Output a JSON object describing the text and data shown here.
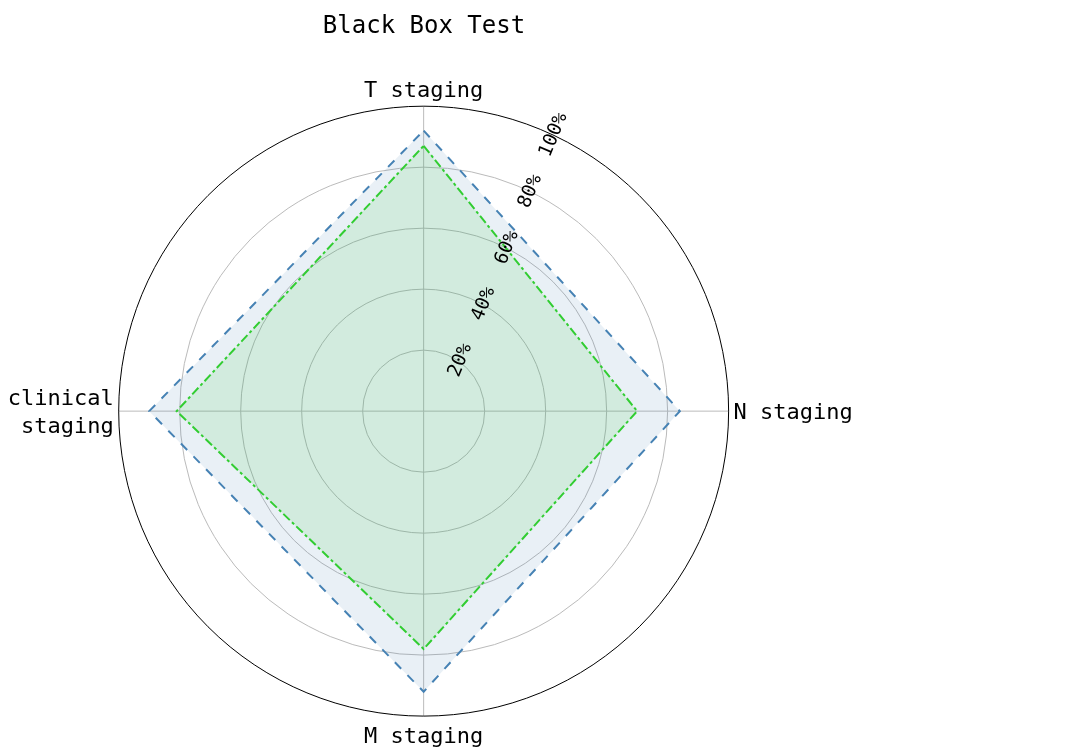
{
  "chart_data": {
    "type": "radar",
    "title": "Black Box Test",
    "categories": [
      "T staging",
      "N staging",
      "M staging",
      "clinical\nstaging"
    ],
    "ylim": [
      0,
      100
    ],
    "yticks": [
      {
        "value": 20,
        "label": "20%"
      },
      {
        "value": 40,
        "label": "40%"
      },
      {
        "value": 60,
        "label": "60%"
      },
      {
        "value": 80,
        "label": "80%"
      },
      {
        "value": 100,
        "label": "100%"
      }
    ],
    "grid": true,
    "series": [
      {
        "color": "#4682b4",
        "line_style": "dashed",
        "values": [
          92,
          84,
          92,
          90
        ]
      },
      {
        "color": "#32cd32",
        "line_style": "dashdot",
        "values": [
          87,
          70,
          78,
          81
        ]
      }
    ]
  }
}
